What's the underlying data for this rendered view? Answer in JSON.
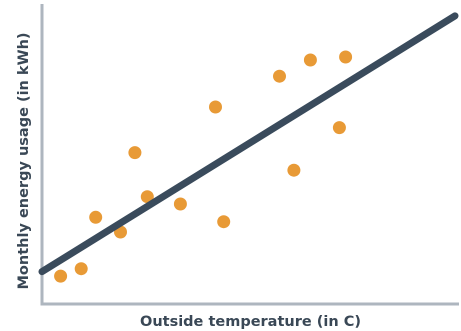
{
  "chart_data": {
    "type": "scatter",
    "xlabel": "Outside temperature (in C)",
    "ylabel": "Monthly energy usage (in kWh)",
    "xlim": [
      0,
      100
    ],
    "ylim": [
      0,
      100
    ],
    "grid": false,
    "points": [
      {
        "x": 4.5,
        "y": 9.5
      },
      {
        "x": 9.5,
        "y": 12.0
      },
      {
        "x": 13.0,
        "y": 29.5
      },
      {
        "x": 19.0,
        "y": 24.5
      },
      {
        "x": 22.5,
        "y": 51.5
      },
      {
        "x": 25.5,
        "y": 36.5
      },
      {
        "x": 33.5,
        "y": 34.0
      },
      {
        "x": 42.0,
        "y": 67.0
      },
      {
        "x": 44.0,
        "y": 28.0
      },
      {
        "x": 57.5,
        "y": 77.5
      },
      {
        "x": 61.0,
        "y": 45.5
      },
      {
        "x": 65.0,
        "y": 83.0
      },
      {
        "x": 72.0,
        "y": 60.0
      },
      {
        "x": 73.5,
        "y": 84.0
      }
    ],
    "trendline": {
      "x": [
        0,
        100
      ],
      "y": [
        11,
        98
      ]
    },
    "colors": {
      "points": "#e89a36",
      "trendline": "#3a4b5c",
      "axis": "#aeb6bf",
      "text": "#3a4856"
    }
  }
}
